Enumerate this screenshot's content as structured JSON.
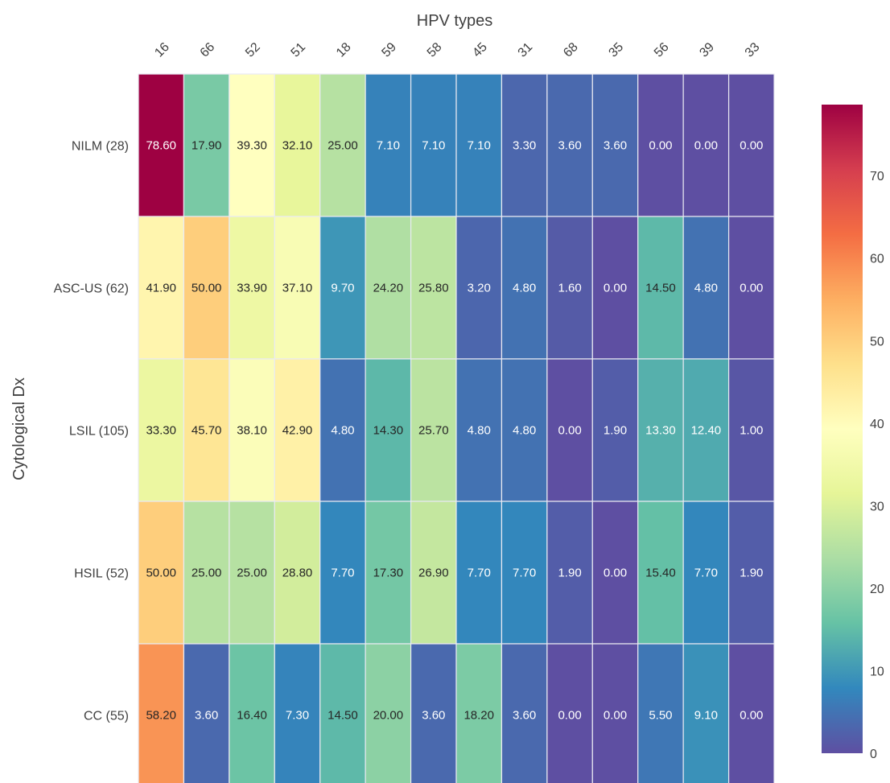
{
  "chart_data": {
    "type": "heatmap",
    "xlabel": "HPV types",
    "ylabel": "Cytological Dx",
    "x_categories": [
      "16",
      "66",
      "52",
      "51",
      "18",
      "59",
      "58",
      "45",
      "31",
      "68",
      "35",
      "56",
      "39",
      "33"
    ],
    "y_categories": [
      "NILM (28)",
      "ASC-US (62)",
      "LSIL (105)",
      "HSIL (52)",
      "CC (55)"
    ],
    "values": [
      [
        78.6,
        17.9,
        39.3,
        32.1,
        25.0,
        7.1,
        7.1,
        7.1,
        3.3,
        3.6,
        3.6,
        0.0,
        0.0,
        0.0
      ],
      [
        41.9,
        50.0,
        33.9,
        37.1,
        9.7,
        24.2,
        25.8,
        3.2,
        4.8,
        1.6,
        0.0,
        14.5,
        4.8,
        0.0
      ],
      [
        33.3,
        45.7,
        38.1,
        42.9,
        4.8,
        14.3,
        25.7,
        4.8,
        4.8,
        0.0,
        1.9,
        13.3,
        12.4,
        1.0
      ],
      [
        50.0,
        25.0,
        25.0,
        28.8,
        7.7,
        17.3,
        26.9,
        7.7,
        7.7,
        1.9,
        0.0,
        15.4,
        7.7,
        1.9
      ],
      [
        58.2,
        3.6,
        16.4,
        7.3,
        14.5,
        20.0,
        3.6,
        18.2,
        3.6,
        0.0,
        0.0,
        5.5,
        9.1,
        0.0
      ]
    ],
    "value_format": "2 decimals",
    "colormap": "Spectral_r",
    "colorbar": {
      "range": [
        0,
        78.6
      ],
      "ticks": [
        0,
        10,
        20,
        30,
        40,
        50,
        60,
        70
      ]
    }
  }
}
